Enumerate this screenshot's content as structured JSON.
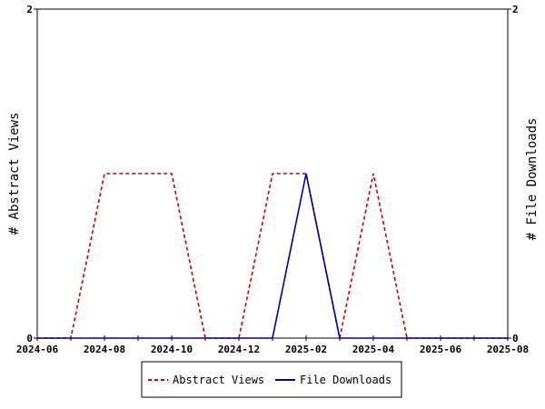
{
  "chart_data": {
    "type": "line",
    "y_left_label": "# Abstract Views",
    "y_right_label": "# File Downloads",
    "x_ticks": [
      "2024-06",
      "2024-08",
      "2024-10",
      "2024-12",
      "2025-02",
      "2025-04",
      "2025-06",
      "2025-08"
    ],
    "x_range": [
      "2024-06",
      "2025-08"
    ],
    "y_left_range": [
      0,
      2
    ],
    "y_right_range": [
      0,
      2
    ],
    "y_left_ticks": [
      "0",
      "2"
    ],
    "y_right_ticks": [
      "0",
      "2"
    ],
    "grid": false,
    "legend_position": "bottom",
    "series": [
      {
        "name": "Abstract Views",
        "axis": "left",
        "color": "#cc0000",
        "style": "dashed",
        "points": [
          [
            "2024-06",
            0
          ],
          [
            "2024-07",
            0
          ],
          [
            "2024-08",
            1
          ],
          [
            "2024-09",
            1
          ],
          [
            "2024-10",
            1
          ],
          [
            "2024-11",
            0
          ],
          [
            "2024-12",
            0
          ],
          [
            "2025-01",
            1
          ],
          [
            "2025-02",
            1
          ],
          [
            "2025-03",
            0
          ],
          [
            "2025-04",
            1
          ],
          [
            "2025-05",
            0
          ],
          [
            "2025-06",
            0
          ],
          [
            "2025-07",
            0
          ],
          [
            "2025-08",
            0
          ]
        ]
      },
      {
        "name": "File Downloads",
        "axis": "right",
        "color": "#000099",
        "style": "solid",
        "points": [
          [
            "2024-06",
            0
          ],
          [
            "2024-07",
            0
          ],
          [
            "2024-08",
            0
          ],
          [
            "2024-09",
            0
          ],
          [
            "2024-10",
            0
          ],
          [
            "2024-11",
            0
          ],
          [
            "2024-12",
            0
          ],
          [
            "2025-01",
            0
          ],
          [
            "2025-02",
            1
          ],
          [
            "2025-03",
            0
          ],
          [
            "2025-04",
            0
          ],
          [
            "2025-05",
            0
          ],
          [
            "2025-06",
            0
          ],
          [
            "2025-07",
            0
          ],
          [
            "2025-08",
            0
          ]
        ]
      }
    ]
  }
}
